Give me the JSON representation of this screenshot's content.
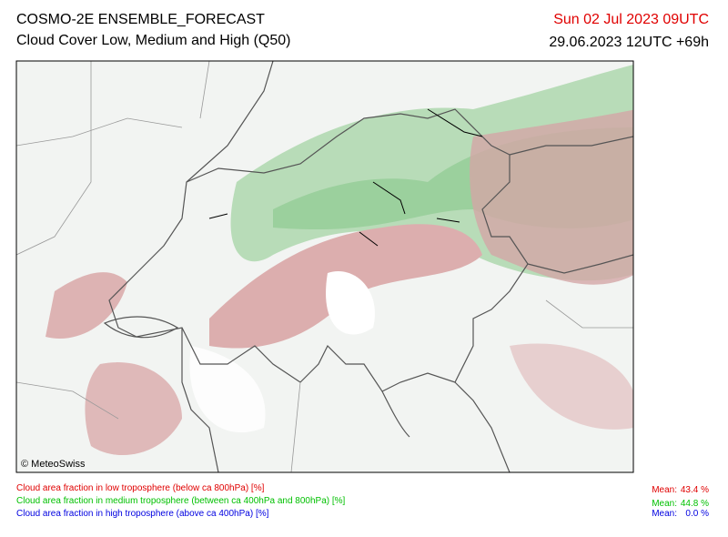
{
  "header": {
    "title": "COSMO-2E ENSEMBLE_FORECAST",
    "subtitle": "Cloud Cover Low, Medium and High (Q50)",
    "valid_time": "Sun 02 Jul 2023 09UTC",
    "valid_time_color": "#e00000",
    "run": "29.06.2023 12UTC +69h"
  },
  "map": {
    "copyright": "© MeteoSwiss"
  },
  "legend": {
    "items": [
      {
        "label": "Cloud area fraction in low troposphere (below ca 800hPa) [%]",
        "mean_label": "Mean:",
        "mean": "43.4 %",
        "color": "#e00000"
      },
      {
        "label": "Cloud area fraction in medium troposphere (between ca 400hPa and 800hPa) [%]",
        "mean_label": "Mean:",
        "mean": "44.8 %",
        "color": "#00c000"
      },
      {
        "label": "Cloud area fraction in high troposphere (above ca 400hPa) [%]",
        "mean_label": "Mean:",
        "mean": "0.0 %",
        "color": "#0000e0"
      }
    ]
  }
}
